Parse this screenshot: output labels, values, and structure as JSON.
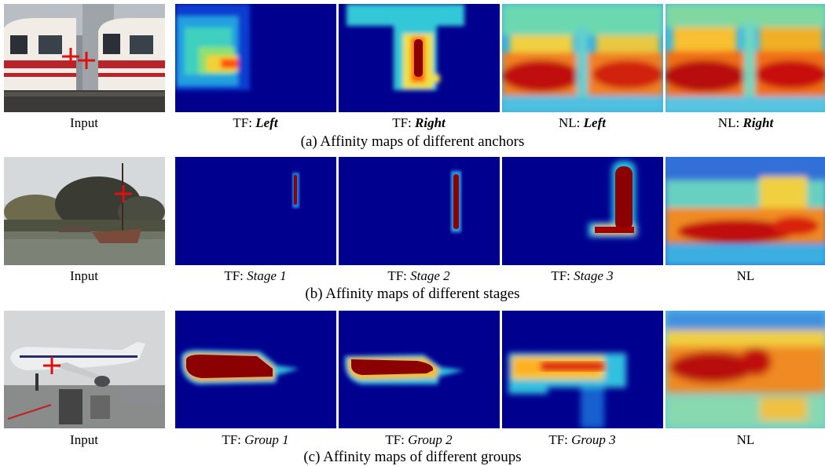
{
  "rows": [
    {
      "caption": "(a) Affinity maps of different anchors",
      "labels": [
        {
          "prefix": "Input",
          "name": ""
        },
        {
          "prefix": "TF: ",
          "name": "Left"
        },
        {
          "prefix": "TF: ",
          "name": "Right"
        },
        {
          "prefix": "NL: ",
          "name": "Left"
        },
        {
          "prefix": "NL: ",
          "name": "Right"
        }
      ]
    },
    {
      "caption": "(b) Affinity maps of different stages",
      "labels": [
        {
          "prefix": "Input",
          "name": ""
        },
        {
          "prefix": "TF: ",
          "name": "Stage 1"
        },
        {
          "prefix": "TF: ",
          "name": "Stage 2"
        },
        {
          "prefix": "TF: ",
          "name": "Stage 3"
        },
        {
          "prefix": "NL",
          "name": ""
        }
      ]
    },
    {
      "caption": "(c) Affinity maps of different groups",
      "labels": [
        {
          "prefix": "Input",
          "name": ""
        },
        {
          "prefix": "TF: ",
          "name": "Group 1"
        },
        {
          "prefix": "TF: ",
          "name": "Group 2"
        },
        {
          "prefix": "TF: ",
          "name": "Group 3"
        },
        {
          "prefix": "NL",
          "name": ""
        }
      ]
    }
  ],
  "colors": {
    "heat_background": "#00008f",
    "heat_hot": "#8b0000",
    "marker": "#e01010"
  }
}
